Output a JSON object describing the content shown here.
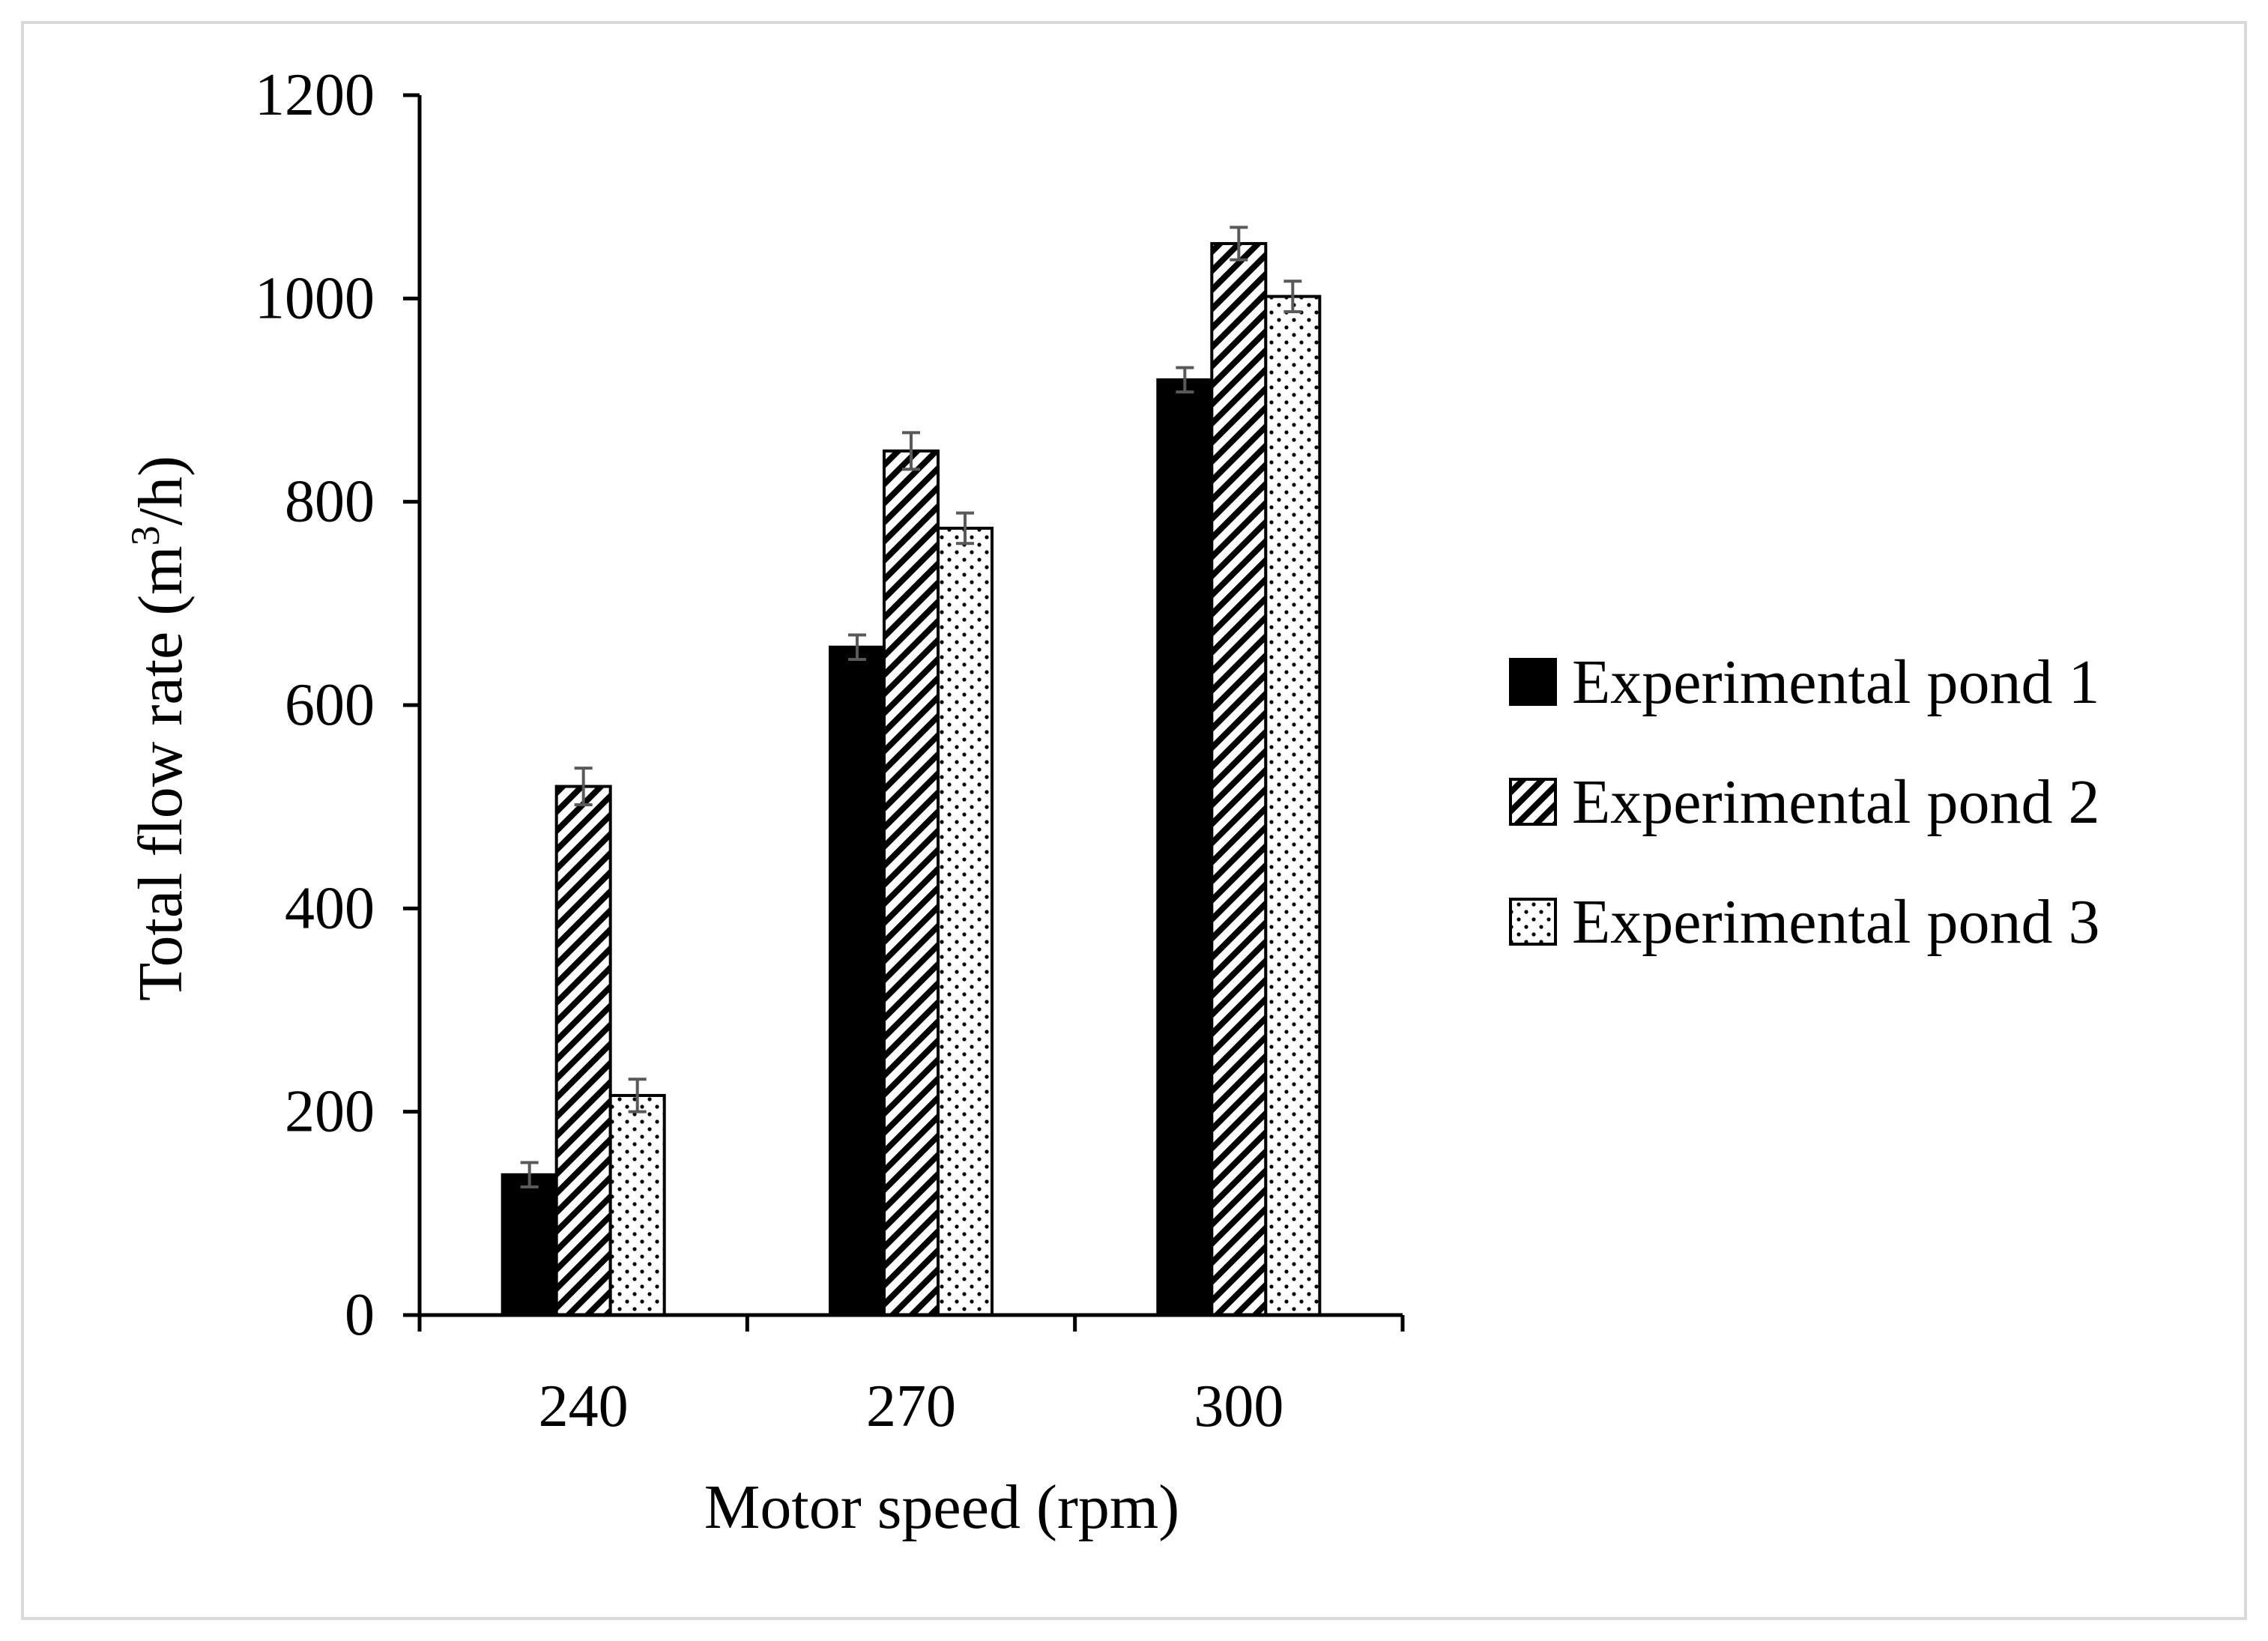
{
  "chart_data": {
    "type": "bar",
    "title": "",
    "xlabel": "Motor speed (rpm)",
    "ylabel": "Total flow rate (m³/h)",
    "ylabel_main": "Total flow rate (m",
    "ylabel_sup": "3",
    "ylabel_tail": "/h)",
    "categories": [
      "240",
      "270",
      "300"
    ],
    "ylim": [
      0,
      1200
    ],
    "yticks": [
      0,
      200,
      400,
      600,
      800,
      1000,
      1200
    ],
    "grid": false,
    "error_bars": true,
    "legend_position": "right",
    "series": [
      {
        "name": "Experimental pond 1",
        "pattern": "solid",
        "values": [
          138,
          657,
          920
        ],
        "errors": [
          12,
          12,
          12
        ]
      },
      {
        "name": "Experimental pond 2",
        "pattern": "diagonal",
        "values": [
          520,
          850,
          1054
        ],
        "errors": [
          18,
          18,
          16
        ]
      },
      {
        "name": "Experimental pond 3",
        "pattern": "dotted",
        "values": [
          216,
          774,
          1002
        ],
        "errors": [
          16,
          15,
          15
        ]
      }
    ]
  },
  "colors": {
    "bar_fill_dark": "#000000",
    "bar_outline": "#000000",
    "error_bar": "#595959",
    "axis": "#000000",
    "frame_border": "#d9d9d9"
  }
}
